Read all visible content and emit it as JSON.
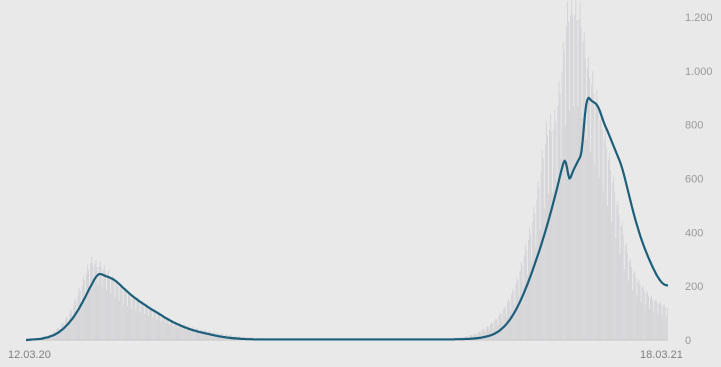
{
  "chart_data": {
    "type": "bar",
    "overlay": "line",
    "title": "",
    "xlabel": "",
    "ylabel": "",
    "x_start_label": "12.03.20",
    "x_end_label": "18.03.21",
    "ylim": [
      0,
      1200
    ],
    "y_ticks": [
      0,
      200,
      400,
      600,
      800,
      1000,
      1200
    ],
    "y_tick_labels": [
      "0",
      "200",
      "400",
      "600",
      "800",
      "1.000",
      "1.200"
    ],
    "grid": false,
    "y_axis_side": "right",
    "colors": {
      "background": "#e9e9e9",
      "bars": "#d3d3d7",
      "line": "#1d5f7a",
      "ticks": "#9a9a9a"
    },
    "series": [
      {
        "kind": "bars",
        "values": [
          0,
          0,
          1,
          1,
          2,
          2,
          3,
          3,
          2,
          4,
          5,
          4,
          3,
          7,
          9,
          8,
          7,
          13,
          14,
          13,
          10,
          18,
          21,
          20,
          16,
          28,
          32,
          30,
          25,
          41,
          46,
          43,
          35,
          56,
          65,
          63,
          48,
          76,
          86,
          82,
          63,
          98,
          114,
          109,
          84,
          130,
          152,
          144,
          108,
          166,
          193,
          182,
          135,
          202,
          235,
          222,
          165,
          247,
          278,
          262,
          194,
          286,
          309,
          287,
          207,
          281,
          295,
          271,
          204,
          272,
          292,
          272,
          199,
          262,
          277,
          257,
          187,
          246,
          259,
          238,
          174,
          230,
          238,
          218,
          160,
          212,
          220,
          200,
          147,
          196,
          204,
          185,
          136,
          182,
          189,
          171,
          126,
          171,
          176,
          157,
          116,
          157,
          164,
          148,
          107,
          146,
          155,
          140,
          101,
          138,
          146,
          133,
          95,
          130,
          136,
          123,
          89,
          121,
          125,
          114,
          82,
          113,
          117,
          106,
          76,
          103,
          106,
          95,
          69,
          92,
          93,
          84,
          61,
          82,
          82,
          74,
          55,
          74,
          74,
          67,
          50,
          67,
          67,
          61,
          45,
          62,
          63,
          57,
          41,
          55,
          58,
          53,
          37,
          49,
          53,
          49,
          33,
          44,
          48,
          45,
          30,
          40,
          44,
          41,
          27,
          36,
          40,
          38,
          24,
          34,
          37,
          34,
          22,
          31,
          34,
          31,
          20,
          29,
          30,
          28,
          18,
          25,
          27,
          25,
          16,
          23,
          25,
          22,
          15,
          21,
          21,
          19,
          13,
          19,
          19,
          17,
          11,
          15,
          16,
          15,
          10,
          14,
          14,
          13,
          9,
          12,
          12,
          12,
          8,
          11,
          11,
          10,
          7,
          9,
          9,
          9,
          6,
          8,
          8,
          8,
          5,
          7,
          8,
          7,
          5,
          6,
          7,
          6,
          4,
          5,
          5,
          5,
          4,
          5,
          5,
          4,
          3,
          4,
          4,
          4,
          3,
          3,
          3,
          3,
          2,
          3,
          3,
          3,
          2,
          3,
          3,
          3,
          2,
          3,
          3,
          3,
          2,
          2,
          3,
          2,
          2,
          2,
          2,
          2,
          1,
          2,
          2,
          2,
          1,
          2,
          2,
          2,
          1,
          2,
          2,
          2,
          1,
          2,
          2,
          2,
          1,
          2,
          2,
          2,
          1,
          2,
          2,
          2,
          1,
          2,
          2,
          2,
          1,
          2,
          2,
          2,
          1,
          2,
          2,
          2,
          1,
          2,
          2,
          2,
          1,
          2,
          2,
          2,
          1,
          2,
          2,
          2,
          1,
          2,
          2,
          2,
          1,
          2,
          2,
          2,
          1,
          2,
          2,
          2,
          1,
          2,
          2,
          2,
          1,
          2,
          2,
          2,
          1,
          2,
          2,
          2,
          1,
          2,
          2,
          2,
          1,
          2,
          2,
          2,
          1,
          2,
          2,
          2,
          1,
          2,
          2,
          2,
          1,
          2,
          2,
          2,
          1,
          2,
          2,
          2,
          1,
          2,
          2,
          2,
          1,
          2,
          2,
          2,
          1,
          2,
          2,
          2,
          1,
          2,
          2,
          2,
          1,
          2,
          2,
          2,
          1,
          3,
          3,
          3,
          2,
          3,
          3,
          3,
          2,
          3,
          4,
          3,
          2,
          4,
          4,
          4,
          3,
          5,
          5,
          5,
          3,
          5,
          6,
          6,
          4,
          7,
          7,
          7,
          5,
          8,
          9,
          9,
          6,
          10,
          11,
          11,
          8,
          13,
          14,
          14,
          10,
          17,
          18,
          18,
          13,
          22,
          24,
          24,
          17,
          29,
          31,
          31,
          22,
          37,
          40,
          39,
          28,
          47,
          51,
          49,
          35,
          60,
          66,
          62,
          44,
          73,
          80,
          77,
          55,
          91,
          101,
          97,
          70,
          114,
          125,
          118,
          85,
          138,
          152,
          145,
          106,
          170,
          189,
          178,
          129,
          208,
          232,
          221,
          161,
          257,
          289,
          276,
          201,
          314,
          353,
          332,
          241,
          372,
          417,
          395,
          288,
          439,
          495,
          471,
          345,
          523,
          590,
          564,
          411,
          622,
          707,
          673,
          488,
          728,
          813,
          759,
          541,
          781,
          839,
          773,
          547,
          781,
          855,
          808,
          592,
          871,
          961,
          916,
          674,
          997,
          1107,
          1072,
          793,
          1165,
          1260,
          1184,
          851,
          1205,
          1290,
          1208,
          869,
          1207,
          1271,
          1188,
          866,
          1192,
          1253,
          1164,
          824,
          1109,
          1143,
          1046,
          744,
          1008,
          1049,
          971,
          697,
          951,
          999,
          919,
          650,
          883,
          929,
          854,
          603,
          816,
          856,
          785,
          552,
          745,
          780,
          713,
          497,
          667,
          694,
          632,
          438,
          585,
          607,
          549,
          378,
          502,
          518,
          466,
          319,
          422,
          434,
          390,
          265,
          352,
          361,
          324,
          220,
          292,
          300,
          271,
          185,
          248,
          256,
          233,
          161,
          217,
          225,
          206,
          143,
          193,
          201,
          184,
          129,
          174,
          181,
          165,
          115,
          158,
          165,
          150,
          105,
          145,
          152,
          139,
          97,
          135,
          142,
          130,
          91,
          127,
          133,
          122,
          86,
          120
        ]
      },
      {
        "kind": "line",
        "name": "",
        "values": [
          0,
          0,
          1,
          1,
          1,
          2,
          2,
          2,
          3,
          3,
          3,
          4,
          4,
          5,
          6,
          7,
          8,
          9,
          10,
          11,
          13,
          15,
          16,
          18,
          20,
          23,
          25,
          28,
          31,
          35,
          38,
          42,
          46,
          51,
          55,
          60,
          65,
          71,
          76,
          82,
          88,
          95,
          102,
          109,
          116,
          124,
          132,
          140,
          149,
          157,
          166,
          175,
          184,
          193,
          201,
          209,
          218,
          226,
          233,
          238,
          243,
          245,
          245,
          244,
          242,
          240,
          238,
          236,
          235,
          233,
          231,
          229,
          227,
          224,
          221,
          218,
          214,
          210,
          206,
          202,
          197,
          193,
          189,
          185,
          181,
          177,
          173,
          169,
          165,
          162,
          158,
          155,
          152,
          148,
          145,
          142,
          139,
          136,
          133,
          130,
          127,
          124,
          121,
          118,
          115,
          112,
          110,
          107,
          105,
          102,
          99,
          96,
          94,
          91,
          88,
          85,
          82,
          80,
          77,
          75,
          72,
          70,
          67,
          65,
          63,
          61,
          59,
          57,
          55,
          53,
          51,
          49,
          47,
          46,
          44,
          42,
          41,
          39,
          38,
          36,
          35,
          34,
          33,
          31,
          30,
          29,
          28,
          27,
          26,
          25,
          24,
          23,
          22,
          21,
          20,
          19,
          18,
          17,
          16,
          15,
          14,
          13,
          13,
          12,
          11,
          11,
          10,
          9,
          9,
          8,
          8,
          7,
          7,
          6,
          6,
          6,
          5,
          5,
          5,
          4,
          4,
          4,
          4,
          3,
          3,
          3,
          3,
          3,
          3,
          2,
          2,
          2,
          2,
          2,
          2,
          2,
          2,
          2,
          2,
          2,
          2,
          2,
          2,
          2,
          2,
          2,
          2,
          2,
          2,
          2,
          2,
          2,
          2,
          2,
          2,
          2,
          2,
          2,
          2,
          2,
          2,
          2,
          2,
          2,
          2,
          2,
          2,
          2,
          2,
          2,
          2,
          2,
          2,
          2,
          2,
          2,
          2,
          2,
          2,
          2,
          2,
          2,
          2,
          2,
          2,
          2,
          2,
          2,
          2,
          2,
          2,
          2,
          2,
          2,
          2,
          2,
          2,
          2,
          2,
          2,
          2,
          2,
          2,
          2,
          2,
          2,
          2,
          2,
          2,
          2,
          2,
          2,
          2,
          2,
          2,
          2,
          2,
          2,
          2,
          2,
          2,
          2,
          2,
          2,
          2,
          2,
          2,
          2,
          2,
          2,
          2,
          2,
          2,
          2,
          2,
          2,
          2,
          2,
          2,
          2,
          2,
          2,
          2,
          2,
          2,
          2,
          2,
          2,
          2,
          2,
          2,
          2,
          2,
          2,
          2,
          2,
          2,
          2,
          2,
          2,
          2,
          2,
          2,
          2,
          2,
          2,
          2,
          2,
          2,
          2,
          2,
          2,
          2,
          2,
          2,
          2,
          2,
          2,
          2,
          2,
          2,
          2,
          2,
          2,
          2,
          2,
          2,
          2,
          2,
          2,
          2,
          2,
          2,
          2,
          2,
          2,
          2,
          3,
          3,
          3,
          3,
          3,
          3,
          3,
          3,
          4,
          4,
          4,
          4,
          4,
          5,
          5,
          5,
          6,
          6,
          7,
          7,
          8,
          8,
          9,
          10,
          11,
          12,
          13,
          14,
          15,
          17,
          18,
          20,
          22,
          24,
          27,
          29,
          32,
          35,
          39,
          43,
          47,
          51,
          56,
          61,
          67,
          73,
          79,
          86,
          93,
          100,
          108,
          116,
          125,
          134,
          143,
          153,
          163,
          173,
          184,
          195,
          206,
          218,
          230,
          242,
          254,
          267,
          280,
          293,
          306,
          319,
          332,
          346,
          360,
          375,
          389,
          404,
          419,
          435,
          451,
          467,
          483,
          500,
          517,
          534,
          551,
          569,
          587,
          606,
          624,
          641,
          657,
          666,
          660,
          640,
          615,
          600,
          604,
          616,
          627,
          637,
          646,
          655,
          664,
          672,
          680,
          700,
          740,
          790,
          840,
          875,
          893,
          900,
          896,
          890,
          887,
          884,
          881,
          878,
          872,
          864,
          854,
          842,
          829,
          816,
          804,
          793,
          783,
          773,
          762,
          751,
          740,
          729,
          718,
          707,
          696,
          685,
          674,
          663,
          650,
          636,
          620,
          603,
          585,
          567,
          549,
          531,
          513,
          495,
          478,
          461,
          445,
          430,
          415,
          400,
          386,
          373,
          360,
          348,
          336,
          325,
          314,
          303,
          293,
          283,
          273,
          264,
          255,
          246,
          238,
          231,
          224,
          218,
          213,
          209,
          206,
          204,
          203,
          203
        ]
      }
    ]
  }
}
